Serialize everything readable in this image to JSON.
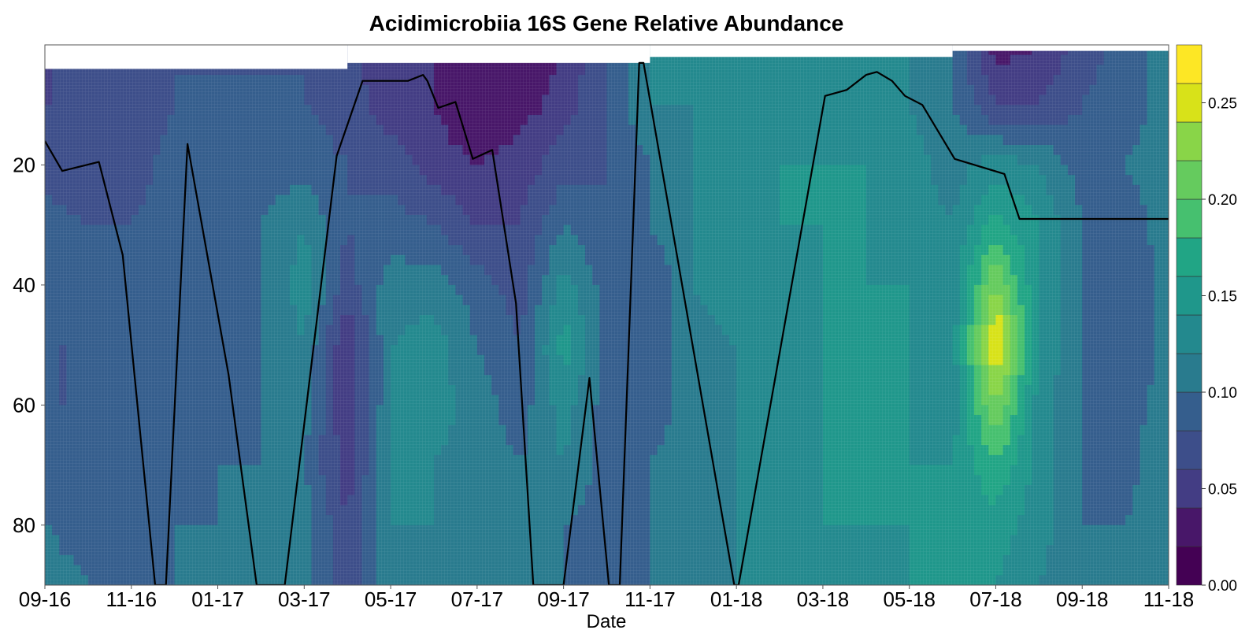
{
  "chart_data": {
    "type": "heatmap",
    "title": "Acidimicrobiia 16S Gene Relative Abundance",
    "xlabel": "Date",
    "ylabel": "",
    "x_tick_labels": [
      "09-16",
      "11-16",
      "01-17",
      "03-17",
      "05-17",
      "07-17",
      "09-17",
      "11-17",
      "01-18",
      "03-18",
      "05-18",
      "07-18",
      "09-18",
      "11-18"
    ],
    "y_ticks": [
      20,
      40,
      60,
      80
    ],
    "y_range": [
      90,
      0
    ],
    "colorbar": {
      "ticks": [
        "0.00",
        "0.05",
        "0.10",
        "0.15",
        "0.20",
        "0.25"
      ],
      "range": [
        0.0,
        0.28
      ],
      "levels": [
        0.0,
        0.02,
        0.04,
        0.06,
        0.08,
        0.1,
        0.12,
        0.14,
        0.16,
        0.18,
        0.2,
        0.22,
        0.24,
        0.26,
        0.28
      ],
      "colormap": [
        "#440154",
        "#481769",
        "#472a7a",
        "#433d84",
        "#3d4e8a",
        "#355e8d",
        "#2e6d8e",
        "#297b8e",
        "#23898e",
        "#1f978b",
        "#21a585",
        "#2eb37c",
        "#46c06f",
        "#65cb5e",
        "#89d548",
        "#b0dd2f",
        "#d8e219",
        "#fde725"
      ]
    },
    "depths": [
      0,
      10,
      20,
      30,
      40,
      50,
      60,
      70,
      80,
      90
    ],
    "dates": [
      "09-16",
      "10-16",
      "11-16",
      "12-16",
      "01-17",
      "02-17",
      "03-17",
      "04-17",
      "05-17",
      "06-17",
      "07-17",
      "08-17",
      "09-17",
      "10-17",
      "11-17",
      "12-17",
      "01-18",
      "02-18",
      "03-18",
      "04-18",
      "05-18",
      "06-18",
      "07-18",
      "08-18",
      "09-18",
      "10-18",
      "11-18"
    ],
    "abundance": [
      [
        0.06,
        0.06,
        0.06,
        0.08,
        0.08,
        0.08,
        0.08,
        0.07,
        0.04,
        0.04,
        0.02,
        0.02,
        0.04,
        0.08,
        0.12,
        0.12,
        0.12,
        0.13,
        0.13,
        0.12,
        0.12,
        0.1,
        0.03,
        0.04,
        0.07,
        0.09,
        0.11
      ],
      [
        0.06,
        0.06,
        0.06,
        0.08,
        0.08,
        0.08,
        0.08,
        0.07,
        0.05,
        0.04,
        0.02,
        0.03,
        0.05,
        0.08,
        0.12,
        0.12,
        0.12,
        0.13,
        0.13,
        0.13,
        0.12,
        0.1,
        0.06,
        0.06,
        0.08,
        0.09,
        0.11
      ],
      [
        0.07,
        0.06,
        0.07,
        0.09,
        0.09,
        0.09,
        0.09,
        0.08,
        0.07,
        0.05,
        0.04,
        0.05,
        0.07,
        0.08,
        0.1,
        0.12,
        0.13,
        0.14,
        0.14,
        0.14,
        0.13,
        0.11,
        0.13,
        0.12,
        0.09,
        0.1,
        0.11
      ],
      [
        0.09,
        0.08,
        0.08,
        0.09,
        0.09,
        0.1,
        0.12,
        0.08,
        0.09,
        0.08,
        0.06,
        0.06,
        0.1,
        0.08,
        0.1,
        0.12,
        0.13,
        0.14,
        0.14,
        0.14,
        0.13,
        0.12,
        0.17,
        0.14,
        0.1,
        0.09,
        0.11
      ],
      [
        0.09,
        0.08,
        0.08,
        0.08,
        0.09,
        0.1,
        0.13,
        0.07,
        0.11,
        0.11,
        0.09,
        0.07,
        0.13,
        0.09,
        0.08,
        0.12,
        0.13,
        0.12,
        0.14,
        0.14,
        0.14,
        0.13,
        0.22,
        0.14,
        0.1,
        0.08,
        0.11
      ],
      [
        0.08,
        0.08,
        0.08,
        0.08,
        0.08,
        0.1,
        0.12,
        0.04,
        0.12,
        0.13,
        0.1,
        0.08,
        0.15,
        0.09,
        0.09,
        0.11,
        0.12,
        0.12,
        0.14,
        0.14,
        0.14,
        0.13,
        0.27,
        0.14,
        0.1,
        0.08,
        0.11
      ],
      [
        0.08,
        0.08,
        0.08,
        0.08,
        0.08,
        0.1,
        0.11,
        0.04,
        0.12,
        0.13,
        0.11,
        0.09,
        0.13,
        0.09,
        0.09,
        0.11,
        0.12,
        0.12,
        0.14,
        0.14,
        0.14,
        0.13,
        0.22,
        0.13,
        0.1,
        0.09,
        0.11
      ],
      [
        0.09,
        0.08,
        0.08,
        0.09,
        0.1,
        0.1,
        0.1,
        0.05,
        0.12,
        0.12,
        0.11,
        0.1,
        0.12,
        0.09,
        0.1,
        0.11,
        0.12,
        0.13,
        0.14,
        0.14,
        0.14,
        0.14,
        0.18,
        0.13,
        0.1,
        0.09,
        0.12
      ],
      [
        0.1,
        0.09,
        0.09,
        0.1,
        0.1,
        0.11,
        0.11,
        0.06,
        0.12,
        0.12,
        0.11,
        0.1,
        0.1,
        0.09,
        0.1,
        0.11,
        0.12,
        0.13,
        0.14,
        0.14,
        0.14,
        0.14,
        0.15,
        0.13,
        0.1,
        0.1,
        0.12
      ],
      [
        0.11,
        0.1,
        0.1,
        0.1,
        0.1,
        0.11,
        0.11,
        0.07,
        0.11,
        0.11,
        0.11,
        0.1,
        0.1,
        0.1,
        0.1,
        0.11,
        0.12,
        0.13,
        0.14,
        0.13,
        0.14,
        0.14,
        0.14,
        0.12,
        0.1,
        0.1,
        0.12
      ]
    ],
    "line_label": "",
    "overlay_line": {
      "x": [
        0.0,
        0.4,
        1.25,
        1.8,
        2.55,
        2.8,
        3.3,
        4.25,
        4.9,
        5.55,
        6.75,
        7.35,
        8.4,
        8.75,
        8.85,
        9.1,
        9.5,
        9.9,
        10.35,
        10.9,
        11.3,
        12.0,
        12.6,
        13.05,
        13.3,
        13.75,
        13.85,
        15.95,
        16.05,
        18.05,
        18.55,
        19.0,
        19.25,
        19.6,
        19.9,
        20.3,
        21.05,
        22.2,
        22.55,
        23.15,
        23.7,
        24.2,
        25.15,
        25.45,
        25.95,
        26.2,
        26.75,
        27.0
      ],
      "y": [
        16,
        21,
        19.5,
        35,
        90,
        90,
        16.5,
        55,
        90,
        90,
        18.5,
        6,
        6,
        5,
        6,
        10.5,
        9.5,
        19,
        17.5,
        43,
        90,
        90,
        55.5,
        90,
        90,
        3,
        3,
        90,
        90,
        8.5,
        7.5,
        5,
        4.5,
        6,
        8.5,
        10,
        19,
        21.5,
        29,
        29,
        29,
        29,
        29,
        29,
        29,
        29,
        29,
        29
      ],
      "_note": ""
    }
  }
}
